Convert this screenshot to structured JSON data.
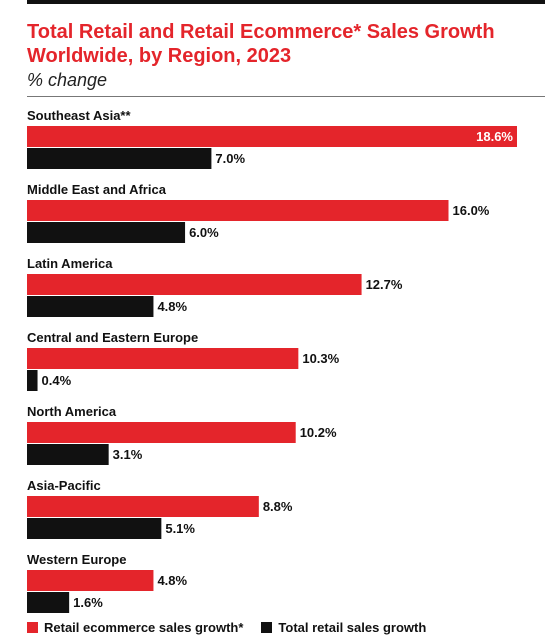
{
  "chart_data": {
    "type": "bar",
    "orientation": "horizontal",
    "title": "Total Retail and Retail Ecommerce* Sales Growth Worldwide, by Region, 2023",
    "subtitle": "% change",
    "categories": [
      "Southeast Asia**",
      "Middle East and Africa",
      "Latin America",
      "Central and Eastern Europe",
      "North America",
      "Asia-Pacific",
      "Western Europe"
    ],
    "series": [
      {
        "name": "Retail ecommerce sales growth*",
        "color": "#e4252b",
        "values": [
          18.6,
          16.0,
          12.7,
          10.3,
          10.2,
          8.8,
          4.8
        ],
        "labels": [
          "18.6%",
          "16.0%",
          "12.7%",
          "10.3%",
          "10.2%",
          "8.8%",
          "4.8%"
        ]
      },
      {
        "name": "Total retail sales growth",
        "color": "#111111",
        "values": [
          7.0,
          6.0,
          4.8,
          0.4,
          3.1,
          5.1,
          1.6
        ],
        "labels": [
          "7.0%",
          "6.0%",
          "4.8%",
          "0.4%",
          "3.1%",
          "5.1%",
          "1.6%"
        ]
      }
    ],
    "xlim": [
      0,
      18.6
    ],
    "grid": false,
    "legend": "bottom-left"
  }
}
